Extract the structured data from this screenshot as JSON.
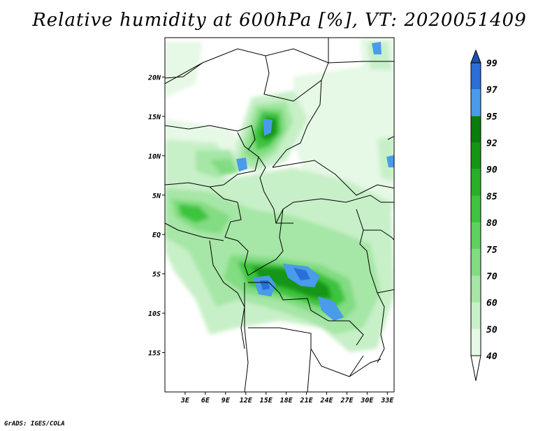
{
  "title": "Relative humidity at 600hPa [%], VT: 2020051409",
  "credit": "GrADS: IGES/COLA",
  "map": {
    "lon_range": [
      0,
      34
    ],
    "lat_range": [
      -20,
      25
    ],
    "lat_ticks": [
      {
        "value": 20,
        "label": "20N"
      },
      {
        "value": 15,
        "label": "15N"
      },
      {
        "value": 10,
        "label": "10N"
      },
      {
        "value": 5,
        "label": "5N"
      },
      {
        "value": 0,
        "label": "EQ"
      },
      {
        "value": -5,
        "label": "5S"
      },
      {
        "value": -10,
        "label": "10S"
      },
      {
        "value": -15,
        "label": "15S"
      }
    ],
    "lon_ticks": [
      {
        "value": 3,
        "label": "3E"
      },
      {
        "value": 6,
        "label": "6E"
      },
      {
        "value": 9,
        "label": "9E"
      },
      {
        "value": 12,
        "label": "12E"
      },
      {
        "value": 15,
        "label": "15E"
      },
      {
        "value": 18,
        "label": "18E"
      },
      {
        "value": 21,
        "label": "21E"
      },
      {
        "value": 24,
        "label": "24E"
      },
      {
        "value": 27,
        "label": "27E"
      },
      {
        "value": 30,
        "label": "30E"
      },
      {
        "value": 33,
        "label": "33E"
      }
    ]
  },
  "colorbar": {
    "levels": [
      "40",
      "50",
      "60",
      "70",
      "75",
      "80",
      "85",
      "90",
      "92",
      "95",
      "97",
      "99"
    ],
    "colors": [
      "#ffffff",
      "#e6f8e6",
      "#c8f0c8",
      "#a6e6a6",
      "#82dc82",
      "#5ed25e",
      "#3ec43e",
      "#28b028",
      "#149614",
      "#0a7d0a",
      "#4a9bea",
      "#2a6fd8",
      "#1f4fb4"
    ]
  }
}
